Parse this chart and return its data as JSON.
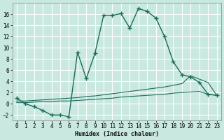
{
  "xlabel": "Humidex (Indice chaleur)",
  "bg_color": "#c8e8e0",
  "line_color": "#1a6b5a",
  "grid_color": "#ffffff",
  "xlim": [
    -0.5,
    23.5
  ],
  "ylim": [
    -3.0,
    18.0
  ],
  "xticks": [
    0,
    1,
    2,
    3,
    4,
    5,
    6,
    7,
    8,
    9,
    10,
    11,
    12,
    13,
    14,
    15,
    16,
    17,
    18,
    19,
    20,
    21,
    22,
    23
  ],
  "yticks": [
    -2,
    0,
    2,
    4,
    6,
    8,
    10,
    12,
    14,
    16
  ],
  "main_x": [
    0,
    1,
    2,
    3,
    4,
    5,
    6,
    7,
    8,
    9,
    10,
    11,
    12,
    13,
    14,
    15,
    16,
    17,
    18,
    19,
    20,
    21,
    22,
    23
  ],
  "main_y": [
    1.0,
    0.0,
    -0.5,
    -1.2,
    -2.0,
    -2.0,
    -2.3,
    9.2,
    4.5,
    9.0,
    15.8,
    15.8,
    16.1,
    13.5,
    17.0,
    16.5,
    15.3,
    12.0,
    7.5,
    5.2,
    4.8,
    3.8,
    1.7,
    1.5
  ],
  "line2_x": [
    0,
    1,
    2,
    3,
    4,
    5,
    6,
    7,
    8,
    9,
    10,
    11,
    12,
    13,
    14,
    15,
    16,
    17,
    18,
    19,
    20,
    21,
    22,
    23
  ],
  "line2_y": [
    0.5,
    0.5,
    0.6,
    0.7,
    0.8,
    0.9,
    1.0,
    1.1,
    1.3,
    1.4,
    1.6,
    1.8,
    2.0,
    2.2,
    2.4,
    2.6,
    2.8,
    3.0,
    3.3,
    3.6,
    5.0,
    4.4,
    3.8,
    1.5
  ],
  "line3_x": [
    0,
    1,
    2,
    3,
    4,
    5,
    6,
    7,
    8,
    9,
    10,
    11,
    12,
    13,
    14,
    15,
    16,
    17,
    18,
    19,
    20,
    21,
    22,
    23
  ],
  "line3_y": [
    0.2,
    0.2,
    0.3,
    0.4,
    0.4,
    0.5,
    0.5,
    0.6,
    0.7,
    0.8,
    0.9,
    1.0,
    1.2,
    1.3,
    1.4,
    1.5,
    1.6,
    1.7,
    1.9,
    2.0,
    2.1,
    2.2,
    1.7,
    1.5
  ]
}
